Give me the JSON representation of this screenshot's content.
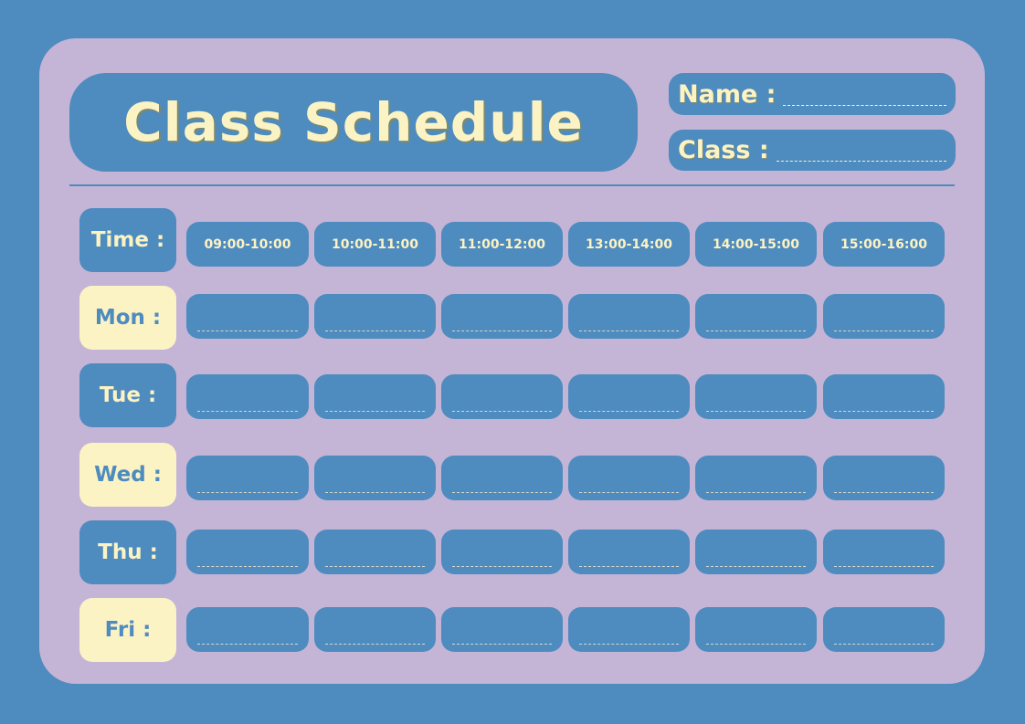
{
  "title": "Class Schedule",
  "fields": {
    "name": "Name :",
    "class": "Class :"
  },
  "time_label": "Time :",
  "times": [
    "09:00-10:00",
    "10:00-11:00",
    "11:00-12:00",
    "13:00-14:00",
    "14:00-15:00",
    "15:00-16:00"
  ],
  "days": [
    "Mon :",
    "Tue :",
    "Wed :",
    "Thu :",
    "Fri :"
  ],
  "colors": {
    "background": "#4e8bbf",
    "card": "#c4b4d6",
    "cream": "#fcf3c4"
  }
}
